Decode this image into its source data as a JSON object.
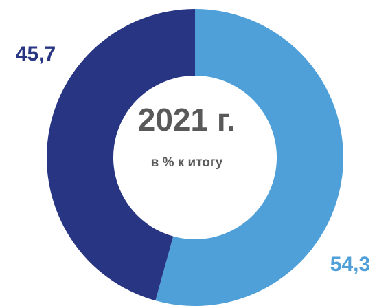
{
  "chart_data": {
    "type": "donut",
    "title": "2021 г.",
    "subtitle": "в % к итогу",
    "values": [
      54.3,
      45.7
    ],
    "value_labels": [
      "54,3",
      "45,7"
    ],
    "colors": [
      "#4f9fd8",
      "#283583"
    ]
  }
}
